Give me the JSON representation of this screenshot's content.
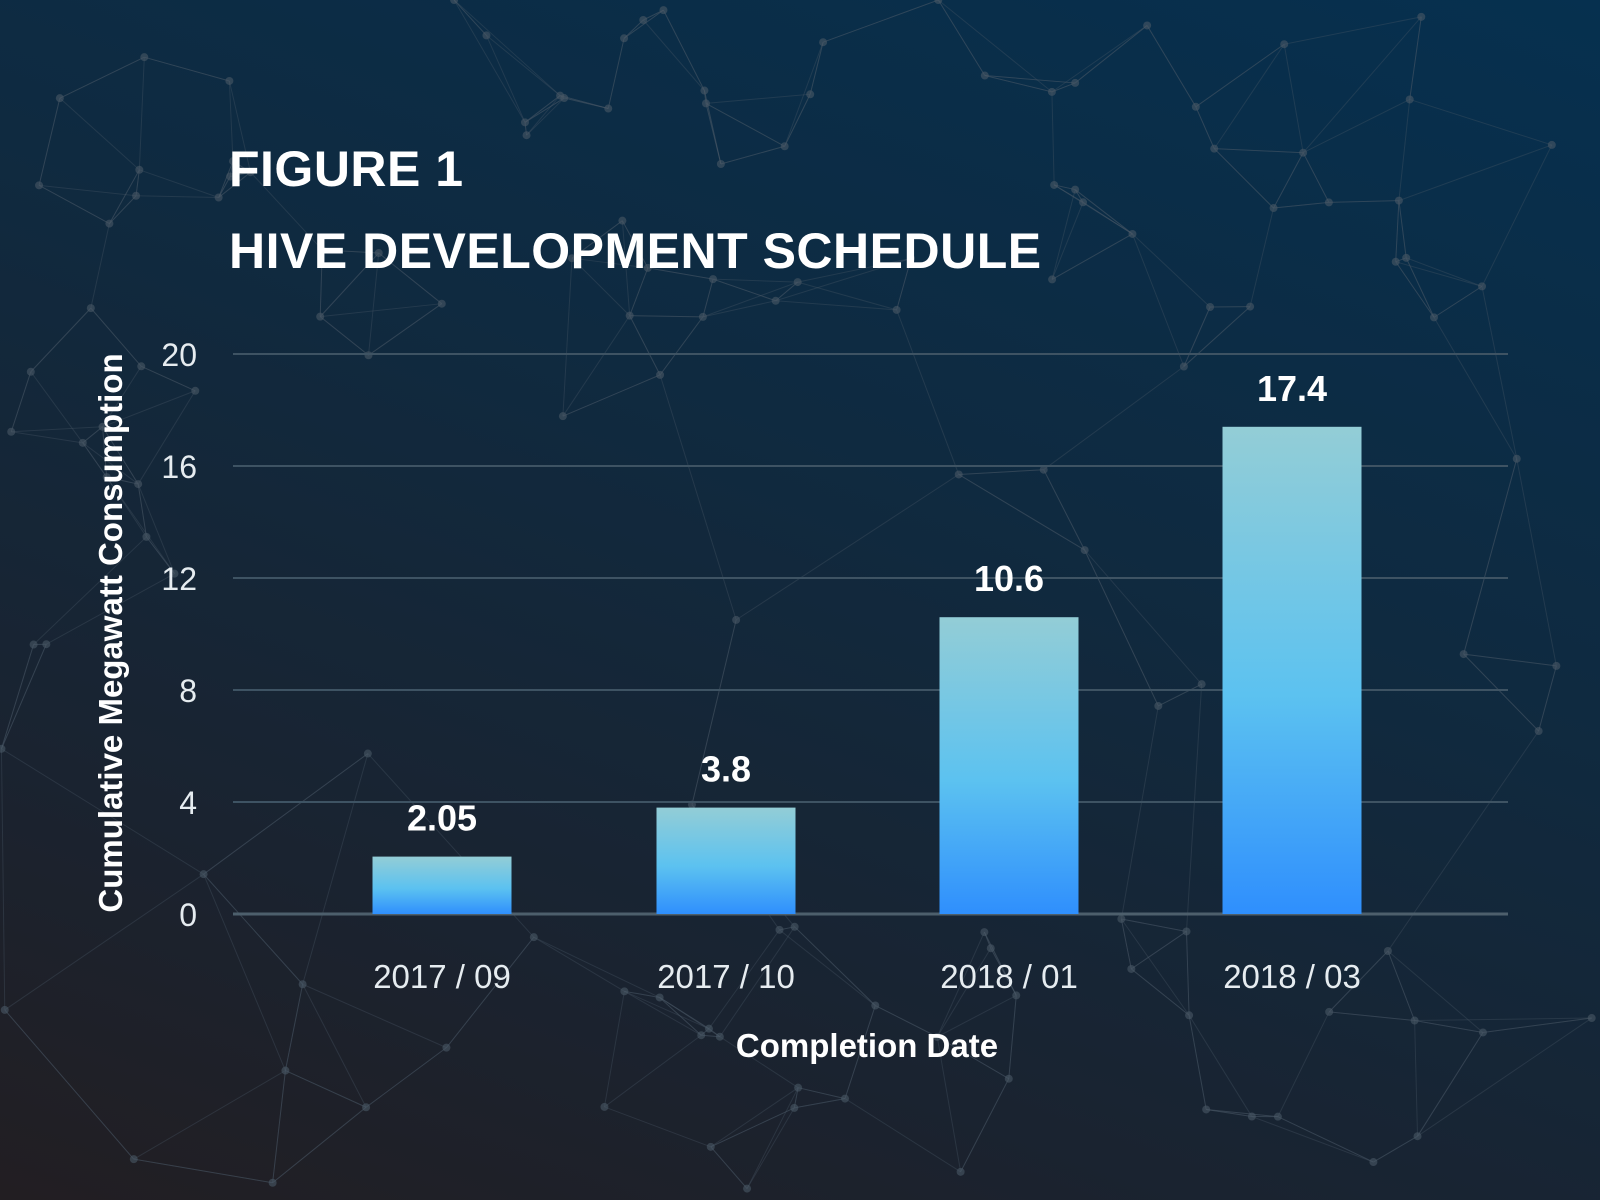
{
  "figure_label": "FIGURE 1",
  "chart_data": {
    "type": "bar",
    "title": "HIVE DEVELOPMENT SCHEDULE",
    "categories": [
      "2017 / 09",
      "2017 / 10",
      "2018 / 01",
      "2018 / 03"
    ],
    "values": [
      2.05,
      3.8,
      10.6,
      17.4
    ],
    "data_labels": [
      "2.05",
      "3.8",
      "10.6",
      "17.4"
    ],
    "xlabel": "Completion Date",
    "ylabel": "Cumulative Megawatt Consumption",
    "ylim": [
      0,
      20
    ],
    "yticks": [
      0,
      4,
      8,
      12,
      16,
      20
    ],
    "grid": true,
    "colors": {
      "bar_top": "#93cdd6",
      "bar_mid": "#5cc2f0",
      "bar_bottom": "#2f8ffd",
      "grid": "#3e5363",
      "text": "#ffffff"
    }
  }
}
